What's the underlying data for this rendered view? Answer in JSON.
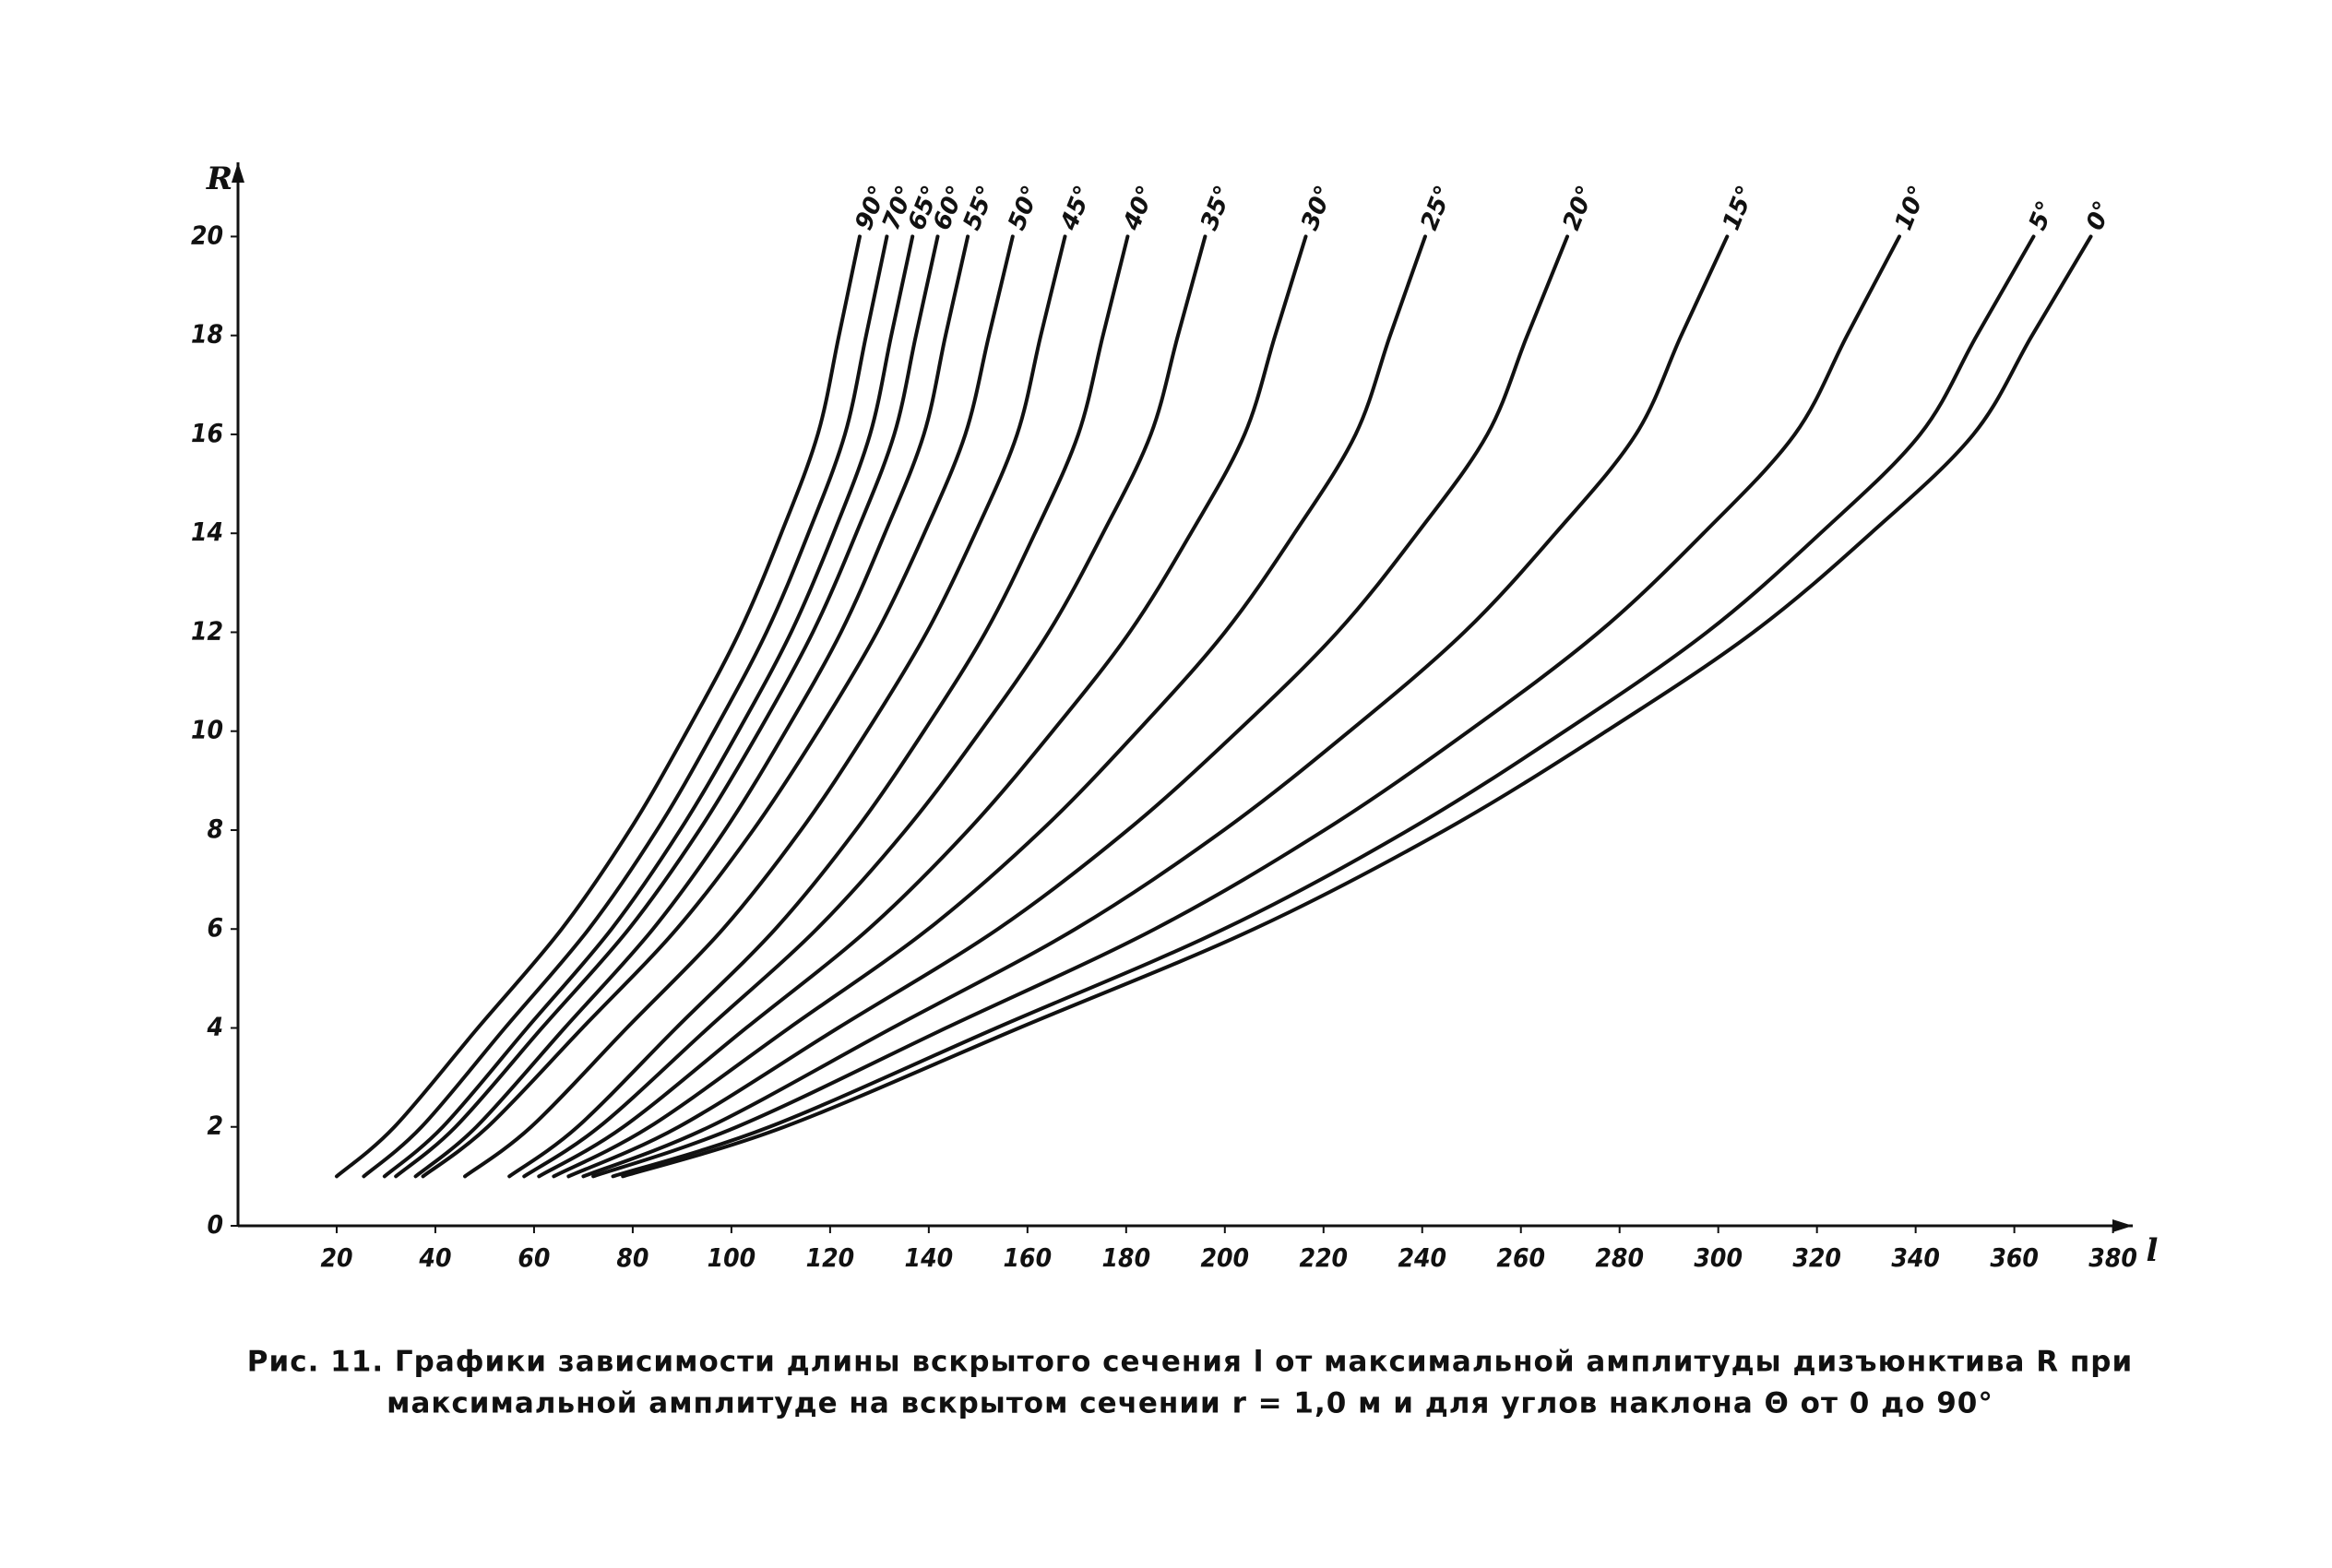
{
  "chart_data": {
    "type": "line",
    "x_label": "l",
    "y_label": "R",
    "caption": [
      "Рис. 11. Графики зависимости длины вскрытого сечения l от максимальной амплитуды дизъюнктива R при",
      "максимальной амплитуде на вскрытом сечении r = 1,0 м и для углов наклона Θ от 0 до 90°"
    ],
    "xlim": [
      0,
      384
    ],
    "ylim": [
      0,
      21.5
    ],
    "xticks": [
      20,
      40,
      60,
      80,
      100,
      120,
      140,
      160,
      180,
      200,
      220,
      240,
      260,
      280,
      300,
      320,
      340,
      360,
      380
    ],
    "yticks": [
      0,
      2,
      4,
      6,
      8,
      10,
      12,
      14,
      16,
      18,
      20
    ],
    "grid": false,
    "series": [
      {
        "name": "90°",
        "color": "#111111",
        "x": [
          20,
          31.7,
          48.6,
          65.6,
          79.4,
          91.0,
          101.6,
          110.1,
          117.5,
          121.8,
          126
        ],
        "values": [
          1,
          2,
          4,
          6,
          8,
          10,
          12,
          14,
          16,
          18,
          20
        ]
      },
      {
        "name": "70°",
        "color": "#111111",
        "x": [
          25.5,
          37.2,
          54.1,
          71.1,
          84.9,
          96.5,
          107.1,
          115.6,
          123.0,
          127.3,
          131.5
        ],
        "values": [
          1,
          2,
          4,
          6,
          8,
          10,
          12,
          14,
          16,
          18,
          20
        ]
      },
      {
        "name": "65°",
        "color": "#111111",
        "x": [
          29.7,
          41.5,
          58.6,
          75.7,
          89.6,
          101.4,
          112.1,
          120.7,
          128.1,
          132.4,
          136.7
        ],
        "values": [
          1,
          2,
          4,
          6,
          8,
          10,
          12,
          14,
          16,
          18,
          20
        ]
      },
      {
        "name": "60°",
        "color": "#111111",
        "x": [
          32,
          44.1,
          61.6,
          79.2,
          93.5,
          105.6,
          116.5,
          125.3,
          133.0,
          137.4,
          141.8
        ],
        "values": [
          1,
          2,
          4,
          6,
          8,
          10,
          12,
          14,
          16,
          18,
          20
        ]
      },
      {
        "name": "55°",
        "color": "#111111",
        "x": [
          36,
          48.3,
          66.2,
          84.1,
          98.7,
          111.0,
          122.2,
          131.1,
          139.0,
          143.4,
          147.9
        ],
        "values": [
          1,
          2,
          4,
          6,
          8,
          10,
          12,
          14,
          16,
          18,
          20
        ]
      },
      {
        "name": "50°",
        "color": "#111111",
        "x": [
          37.5,
          50.6,
          69.8,
          88.9,
          104.4,
          117.6,
          129.5,
          139.1,
          147.4,
          152.2,
          157
        ],
        "values": [
          1,
          2,
          4,
          6,
          8,
          10,
          12,
          14,
          16,
          18,
          20
        ]
      },
      {
        "name": "45°",
        "color": "#111111",
        "x": [
          46,
          59.4,
          78.8,
          98.3,
          114.1,
          127.5,
          139.6,
          149.4,
          157.9,
          162.7,
          167.6
        ],
        "values": [
          1,
          2,
          4,
          6,
          8,
          10,
          12,
          14,
          16,
          18,
          20
        ]
      },
      {
        "name": "40°",
        "color": "#111111",
        "x": [
          55,
          68.8,
          88.8,
          108.9,
          125.2,
          139.0,
          151.5,
          161.5,
          170.3,
          175.3,
          180.3
        ],
        "values": [
          1,
          2,
          4,
          6,
          8,
          10,
          12,
          14,
          16,
          18,
          20
        ]
      },
      {
        "name": "35°",
        "color": "#111111",
        "x": [
          58,
          73.2,
          95.3,
          117.3,
          135.3,
          150.5,
          164.3,
          175.3,
          185.0,
          190.5,
          196
        ],
        "values": [
          1,
          2,
          4,
          6,
          8,
          10,
          12,
          14,
          16,
          18,
          20
        ]
      },
      {
        "name": "30°",
        "color": "#111111",
        "x": [
          61,
          78.1,
          103.0,
          127.8,
          148.0,
          165.1,
          180.7,
          193.1,
          204.0,
          210.2,
          216.4
        ],
        "values": [
          1,
          2,
          4,
          6,
          8,
          10,
          12,
          14,
          16,
          18,
          20
        ]
      },
      {
        "name": "25°",
        "color": "#111111",
        "x": [
          64,
          83.4,
          111.7,
          139.9,
          162.9,
          182.3,
          200.0,
          214.1,
          226.5,
          233.5,
          240.6
        ],
        "values": [
          1,
          2,
          4,
          6,
          8,
          10,
          12,
          14,
          16,
          18,
          20
        ]
      },
      {
        "name": "20°",
        "color": "#111111",
        "x": [
          67,
          89.3,
          121.6,
          154.0,
          180.3,
          202.6,
          222.8,
          239.0,
          253.2,
          261.3,
          269.4
        ],
        "values": [
          1,
          2,
          4,
          6,
          8,
          10,
          12,
          14,
          16,
          18,
          20
        ]
      },
      {
        "name": "15°",
        "color": "#111111",
        "x": [
          70,
          95.5,
          132.6,
          169.7,
          199.8,
          225.3,
          248.5,
          267.0,
          283.3,
          292.5,
          301.8
        ],
        "values": [
          1,
          2,
          4,
          6,
          8,
          10,
          12,
          14,
          16,
          18,
          20
        ]
      },
      {
        "name": "10°",
        "color": "#111111",
        "x": [
          72,
          101.1,
          143.5,
          185.8,
          220.2,
          249.4,
          275.8,
          297.0,
          315.5,
          326.1,
          336.7
        ],
        "values": [
          1,
          2,
          4,
          6,
          8,
          10,
          12,
          14,
          16,
          18,
          20
        ]
      },
      {
        "name": "5°",
        "color": "#111111",
        "x": [
          76,
          107.7,
          153.7,
          199.8,
          237.2,
          268.9,
          297.7,
          320.7,
          340.9,
          352.4,
          363.9
        ],
        "values": [
          1,
          2,
          4,
          6,
          8,
          10,
          12,
          14,
          16,
          18,
          20
        ]
      },
      {
        "name": "0°",
        "color": "#111111",
        "x": [
          78,
          110.7,
          158.3,
          205.9,
          244.6,
          277.3,
          307.1,
          330.9,
          351.7,
          363.6,
          375.5
        ],
        "values": [
          1,
          2,
          4,
          6,
          8,
          10,
          12,
          14,
          16,
          18,
          20
        ]
      }
    ]
  }
}
